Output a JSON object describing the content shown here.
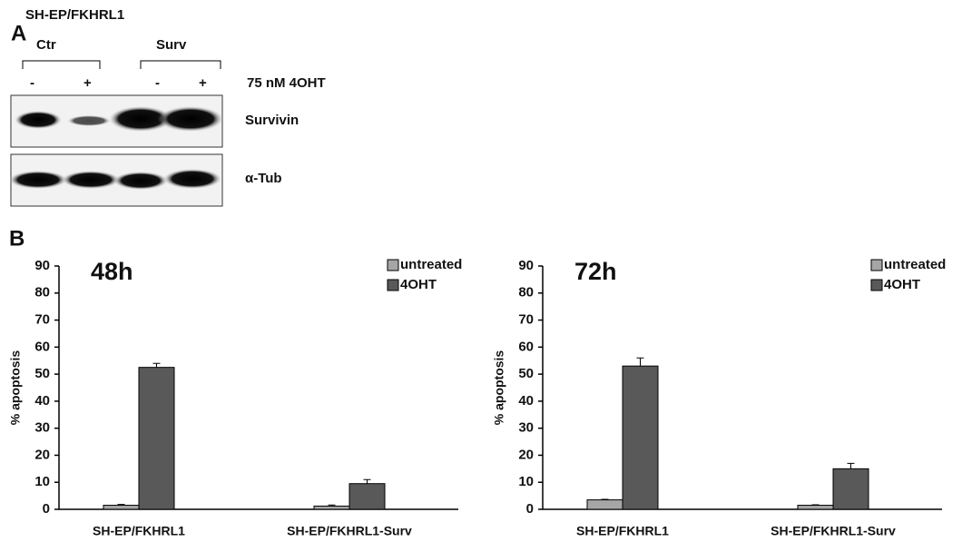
{
  "western_blot": {
    "panel_label": "A",
    "cell_line": "SH-EP/FKHRL1",
    "groups": [
      "Ctr",
      "Surv"
    ],
    "treatment_signs": [
      "-",
      "+",
      "-",
      "+"
    ],
    "treatment": "75 nM 4OHT",
    "blots": [
      "Survivin",
      "α-Tub"
    ]
  },
  "panel_b_label": "B",
  "chart_data": [
    {
      "type": "bar",
      "title": "48h",
      "y_label": "% apoptosis",
      "categories": [
        "SH-EP/FKHRL1",
        "SH-EP/FKHRL1-Surv"
      ],
      "series": [
        {
          "name": "untreated",
          "color": "#a6a6a6",
          "values": [
            1.5,
            1.2
          ],
          "errors": [
            0.3,
            0.4
          ]
        },
        {
          "name": "4OHT",
          "color": "#595959",
          "values": [
            52.5,
            9.5
          ],
          "errors": [
            1.5,
            1.5
          ]
        }
      ],
      "ylim": [
        0,
        90
      ],
      "yticks": [
        0,
        10,
        20,
        30,
        40,
        50,
        60,
        70,
        80,
        90
      ],
      "legend": "top-right"
    },
    {
      "type": "bar",
      "title": "72h",
      "y_label": "% apoptosis",
      "categories": [
        "SH-EP/FKHRL1",
        "SH-EP/FKHRL1-Surv"
      ],
      "series": [
        {
          "name": "untreated",
          "color": "#a6a6a6",
          "values": [
            3.5,
            1.5
          ],
          "errors": [
            0.2,
            0.2
          ]
        },
        {
          "name": "4OHT",
          "color": "#595959",
          "values": [
            53,
            15
          ],
          "errors": [
            3,
            2
          ]
        }
      ],
      "ylim": [
        0,
        90
      ],
      "yticks": [
        0,
        10,
        20,
        30,
        40,
        50,
        60,
        70,
        80,
        90
      ],
      "legend": "top-right"
    }
  ]
}
